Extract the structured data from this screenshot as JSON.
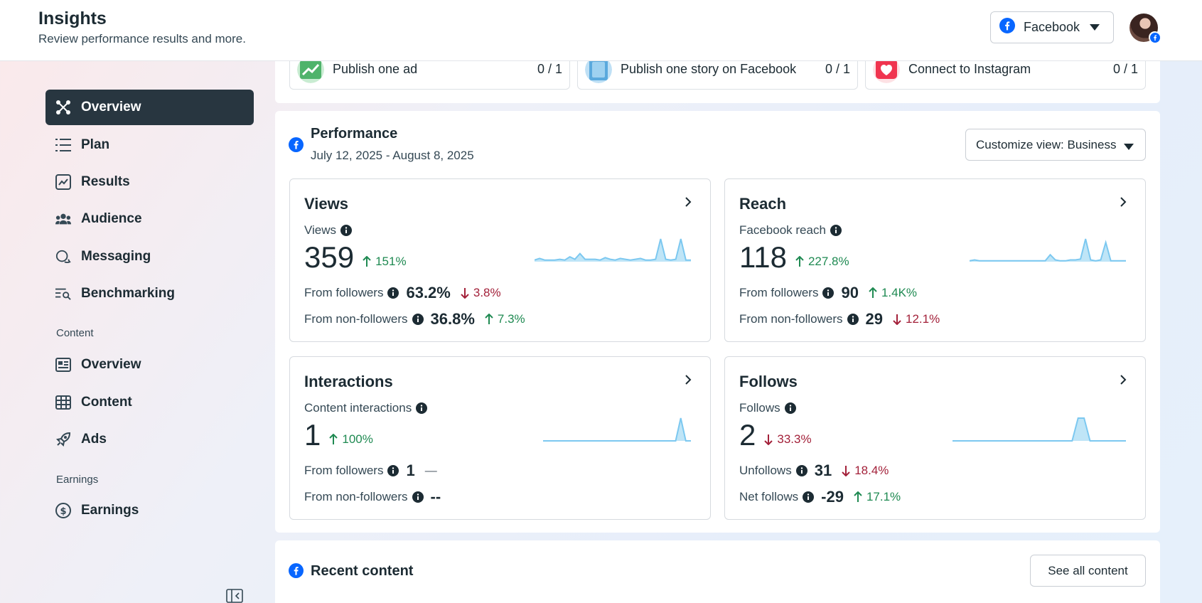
{
  "header": {
    "title": "Insights",
    "subtitle": "Review performance results and more.",
    "platform_select": "Facebook",
    "platform_icon": "facebook-icon",
    "avatar_icon": "avatar"
  },
  "sidebar": {
    "items": [
      {
        "label": "Overview",
        "icon": "overview-icon",
        "active": true
      },
      {
        "label": "Plan",
        "icon": "plan-list-icon"
      },
      {
        "label": "Results",
        "icon": "results-chart-icon"
      },
      {
        "label": "Audience",
        "icon": "audience-people-icon"
      },
      {
        "label": "Messaging",
        "icon": "messaging-bubble-icon"
      },
      {
        "label": "Benchmarking",
        "icon": "benchmarking-icon"
      }
    ],
    "content_section": "Content",
    "content_items": [
      {
        "label": "Overview",
        "icon": "content-overview-icon"
      },
      {
        "label": "Content",
        "icon": "content-table-icon"
      },
      {
        "label": "Ads",
        "icon": "ads-rocket-icon"
      }
    ],
    "earnings_section": "Earnings",
    "earnings_items": [
      {
        "label": "Earnings",
        "icon": "dollar-icon"
      }
    ]
  },
  "tasks": [
    {
      "label": "Publish one ad",
      "count": "0 / 1"
    },
    {
      "label": "Publish one story on Facebook",
      "count": "0 / 1"
    },
    {
      "label": "Connect to Instagram",
      "count": "0 / 1"
    }
  ],
  "performance": {
    "title": "Performance",
    "dates": "July 12, 2025 - August 8, 2025",
    "customize_label": "Customize view: Business"
  },
  "metrics": {
    "views": {
      "title": "Views",
      "sub": "Views",
      "value": "359",
      "change": "151%",
      "change_dir": "up",
      "row1_label": "From followers",
      "row1_value": "63.2%",
      "row1_change": "3.8%",
      "row1_dir": "down",
      "row2_label": "From non-followers",
      "row2_value": "36.8%",
      "row2_change": "7.3%",
      "row2_dir": "up",
      "spark": [
        2,
        4,
        2,
        2,
        2,
        3,
        2,
        6,
        3,
        10,
        3,
        3,
        3,
        2,
        5,
        3,
        2,
        4,
        3,
        2,
        3,
        4,
        2,
        2,
        3,
        28,
        3,
        2,
        3,
        28,
        2,
        2
      ]
    },
    "reach": {
      "title": "Reach",
      "sub": "Facebook reach",
      "value": "118",
      "change": "227.8%",
      "change_dir": "up",
      "row1_label": "From followers",
      "row1_value": "90",
      "row1_change": "1.4K%",
      "row1_dir": "up",
      "row2_label": "From non-followers",
      "row2_value": "29",
      "row2_change": "12.1%",
      "row2_dir": "down",
      "spark": [
        1,
        2,
        1,
        1,
        1,
        1,
        1,
        1,
        1,
        1,
        1,
        1,
        1,
        1,
        1,
        1,
        8,
        2,
        1,
        1,
        2,
        2,
        3,
        26,
        2,
        1,
        2,
        22,
        1,
        1,
        1,
        1
      ]
    },
    "interactions": {
      "title": "Interactions",
      "sub": "Content interactions",
      "value": "1",
      "change": "100%",
      "change_dir": "up",
      "row1_label": "From followers",
      "row1_value": "1",
      "row1_change": "—",
      "row1_dir": "neutral",
      "row2_label": "From non-followers",
      "row2_value": "--",
      "row2_change": "",
      "row2_dir": "neutral",
      "spark": [
        0,
        0,
        0,
        0,
        0,
        0,
        0,
        0,
        0,
        0,
        0,
        0,
        0,
        0,
        0,
        0,
        0,
        0,
        0,
        0,
        0,
        0,
        0,
        0,
        0,
        0,
        0,
        30,
        0,
        0
      ]
    },
    "follows": {
      "title": "Follows",
      "sub": "Follows",
      "value": "2",
      "change": "33.3%",
      "change_dir": "down",
      "row1_label": "Unfollows",
      "row1_value": "31",
      "row1_change": "18.4%",
      "row1_dir": "down",
      "row2_label": "Net follows",
      "row2_value": "-29",
      "row2_change": "17.1%",
      "row2_dir": "up",
      "spark": [
        0,
        0,
        0,
        0,
        0,
        0,
        0,
        0,
        0,
        0,
        0,
        0,
        0,
        0,
        0,
        0,
        0,
        0,
        0,
        0,
        0,
        30,
        30,
        0,
        0,
        0,
        0,
        0,
        0,
        0
      ]
    }
  },
  "recent": {
    "title": "Recent content",
    "see_all": "See all content"
  },
  "colors": {
    "accent": "#0866ff",
    "active_nav": "#283640",
    "up": "#1f8a52",
    "down": "#a3213a",
    "spark_line": "#7cc8f0",
    "spark_fill": "#bfe5f7"
  }
}
